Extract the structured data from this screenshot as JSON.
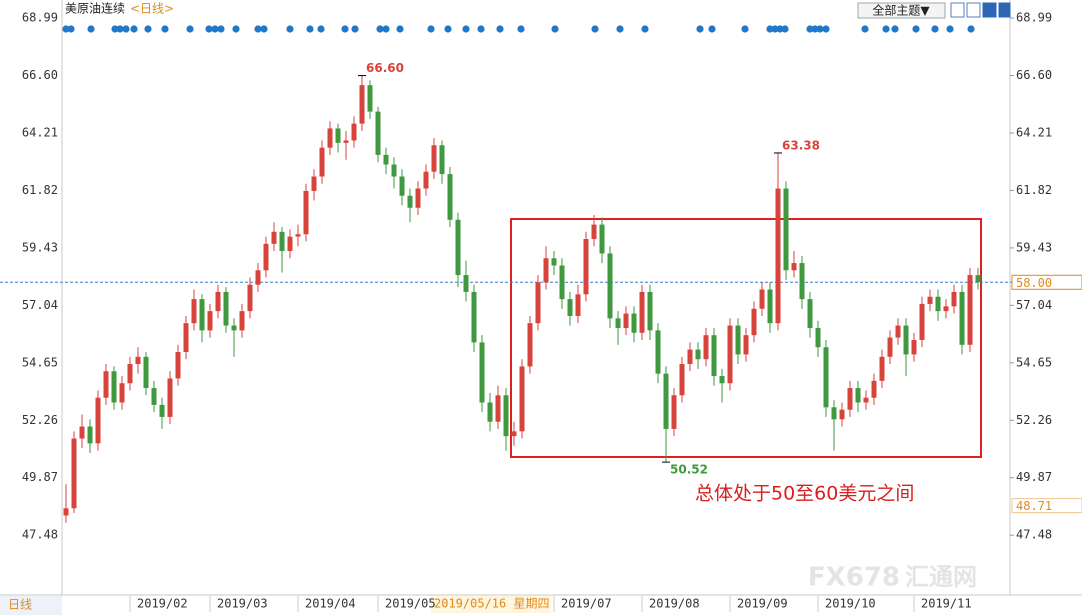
{
  "chart_data": {
    "type": "candlestick",
    "title": "美原油连续",
    "period": "<日线>",
    "theme_button": "全部主题▼",
    "period_selector": "日线",
    "watermark": [
      "FX678",
      "汇通网"
    ],
    "crosshair_label": "2019/05/16 星期四",
    "note": "总体处于50至60美元之间",
    "categories": [
      null,
      null,
      null,
      null,
      null,
      null,
      null,
      null,
      "2019/02",
      null,
      null,
      null,
      null,
      null,
      null,
      null,
      null,
      null,
      "2019/03",
      null,
      null,
      null,
      null,
      null,
      null,
      null,
      null,
      null,
      null,
      "2019/04",
      null,
      null,
      null,
      null,
      null,
      null,
      null,
      null,
      null,
      "2019/05",
      null,
      null,
      null,
      null,
      null,
      null,
      null,
      null,
      null,
      null,
      null,
      null,
      null,
      null,
      null,
      null,
      null,
      null,
      null,
      null,
      null,
      "2019/07",
      null,
      null,
      null,
      null,
      null,
      null,
      null,
      null,
      null,
      null,
      "2019/08",
      null,
      null,
      null,
      null,
      null,
      null,
      null,
      null,
      null,
      null,
      "2019/09",
      null,
      null,
      null,
      null,
      null,
      null,
      null,
      null,
      null,
      null,
      "2019/10",
      null,
      null,
      null,
      null,
      null,
      null,
      null,
      null,
      null,
      null,
      null,
      "2019/11",
      null,
      null,
      null,
      null,
      null,
      null,
      null,
      null
    ],
    "open": [
      48.3,
      48.6,
      51.5,
      52.0,
      51.3,
      53.2,
      54.3,
      53.0,
      53.8,
      54.6,
      54.9,
      53.6,
      52.9,
      52.4,
      54.0,
      55.1,
      56.3,
      57.3,
      56.0,
      56.8,
      57.6,
      56.2,
      56.0,
      56.8,
      57.9,
      58.5,
      59.6,
      60.1,
      59.3,
      59.9,
      60.0,
      61.8,
      62.4,
      63.6,
      64.4,
      63.8,
      63.9,
      64.6,
      66.2,
      65.1,
      63.3,
      62.9,
      62.4,
      61.6,
      61.1,
      61.9,
      62.6,
      63.7,
      62.5,
      60.6,
      58.3,
      57.6,
      55.5,
      53.0,
      52.2,
      53.3,
      51.6,
      51.8,
      54.5,
      56.3,
      58.0,
      59.0,
      58.7,
      57.3,
      56.6,
      57.5,
      59.8,
      60.4,
      59.2,
      56.5,
      56.1,
      56.7,
      55.9,
      57.6,
      56.0,
      54.2,
      51.9,
      53.3,
      54.6,
      55.2,
      54.8,
      55.8,
      54.1,
      53.8,
      56.2,
      55.0,
      55.8,
      56.9,
      57.7,
      56.3,
      61.9,
      58.5,
      58.8,
      57.3,
      56.1,
      55.3,
      52.8,
      52.3,
      52.7,
      53.6,
      53.0,
      53.2,
      53.9,
      54.9,
      55.7,
      56.2,
      55.0,
      55.6,
      57.1,
      57.4,
      56.8,
      57.0,
      57.6,
      55.4,
      58.3
    ],
    "high": [
      49.6,
      51.8,
      52.5,
      52.3,
      53.5,
      54.6,
      54.5,
      54.1,
      54.9,
      55.3,
      55.1,
      53.9,
      53.2,
      54.3,
      55.4,
      56.6,
      57.7,
      57.5,
      57.1,
      57.9,
      57.8,
      56.5,
      57.1,
      58.2,
      58.8,
      59.9,
      60.5,
      60.3,
      60.2,
      60.4,
      62.1,
      62.7,
      63.9,
      64.7,
      64.6,
      64.3,
      64.9,
      66.6,
      66.4,
      65.3,
      63.6,
      63.2,
      62.7,
      61.9,
      62.2,
      62.9,
      64.0,
      63.9,
      62.8,
      60.9,
      58.9,
      57.9,
      55.8,
      53.4,
      53.7,
      53.6,
      52.2,
      54.8,
      56.6,
      58.3,
      59.5,
      59.3,
      59.0,
      57.6,
      57.9,
      60.1,
      60.8,
      60.7,
      59.5,
      56.8,
      57.0,
      57.0,
      57.9,
      57.9,
      56.3,
      54.5,
      53.6,
      54.9,
      55.5,
      55.5,
      56.1,
      56.1,
      54.4,
      56.5,
      56.5,
      56.1,
      57.2,
      58.0,
      58.0,
      63.38,
      62.2,
      59.3,
      59.1,
      57.6,
      56.4,
      55.6,
      53.1,
      53.0,
      53.9,
      53.9,
      53.5,
      54.2,
      55.2,
      56.0,
      56.5,
      56.5,
      55.9,
      57.4,
      57.7,
      57.7,
      57.3,
      57.9,
      57.9,
      58.6,
      58.6
    ],
    "low": [
      48.0,
      48.4,
      51.1,
      50.9,
      51.0,
      52.9,
      52.7,
      52.7,
      53.5,
      54.2,
      53.3,
      52.6,
      51.9,
      52.1,
      53.7,
      54.8,
      56.0,
      55.5,
      55.7,
      56.5,
      55.9,
      54.9,
      55.7,
      56.5,
      57.6,
      58.2,
      59.3,
      58.4,
      59.0,
      59.5,
      59.7,
      61.4,
      62.1,
      63.3,
      63.4,
      63.1,
      63.6,
      64.3,
      64.8,
      63.0,
      62.5,
      61.9,
      61.2,
      60.5,
      60.8,
      61.6,
      62.3,
      62.1,
      60.3,
      57.8,
      57.2,
      55.1,
      52.6,
      51.8,
      51.9,
      51.0,
      51.2,
      51.5,
      54.2,
      56.0,
      57.7,
      58.3,
      56.9,
      56.2,
      56.3,
      57.2,
      59.5,
      58.8,
      56.1,
      55.4,
      55.8,
      55.5,
      55.6,
      55.6,
      53.8,
      50.52,
      51.6,
      53.0,
      54.3,
      54.4,
      54.5,
      53.7,
      53.0,
      53.5,
      54.6,
      54.7,
      55.5,
      56.6,
      55.9,
      56.0,
      58.1,
      58.2,
      56.9,
      55.7,
      54.9,
      52.4,
      51.0,
      52.0,
      52.4,
      52.6,
      52.7,
      52.9,
      53.6,
      54.6,
      55.4,
      54.1,
      54.7,
      55.3,
      56.8,
      56.4,
      56.5,
      56.7,
      55.0,
      55.1,
      57.7
    ],
    "close": [
      48.6,
      51.5,
      52.0,
      51.3,
      53.2,
      54.3,
      53.0,
      53.8,
      54.6,
      54.9,
      53.6,
      52.9,
      52.4,
      54.0,
      55.1,
      56.3,
      57.3,
      56.0,
      56.8,
      57.6,
      56.2,
      56.0,
      56.8,
      57.9,
      58.5,
      59.6,
      60.1,
      59.3,
      59.9,
      60.0,
      61.8,
      62.4,
      63.6,
      64.4,
      63.8,
      63.9,
      64.6,
      66.2,
      65.1,
      63.3,
      62.9,
      62.4,
      61.6,
      61.1,
      61.9,
      62.6,
      63.7,
      62.5,
      60.6,
      58.3,
      57.6,
      55.5,
      53.0,
      52.2,
      53.3,
      51.6,
      51.8,
      54.5,
      56.3,
      58.0,
      59.0,
      58.7,
      57.3,
      56.6,
      57.5,
      59.8,
      60.4,
      59.2,
      56.5,
      56.1,
      56.7,
      55.9,
      57.6,
      56.0,
      54.2,
      51.9,
      53.3,
      54.6,
      55.2,
      54.8,
      55.8,
      54.1,
      53.8,
      56.2,
      55.0,
      55.8,
      56.9,
      57.7,
      56.3,
      61.9,
      58.5,
      58.8,
      57.3,
      56.1,
      55.3,
      52.8,
      52.3,
      52.7,
      53.6,
      53.0,
      53.2,
      53.9,
      54.9,
      55.7,
      56.2,
      55.0,
      55.6,
      57.1,
      57.4,
      56.8,
      57.0,
      57.6,
      55.4,
      58.3,
      58.0
    ],
    "up_color": "#d8433c",
    "down_color": "#3f9a3f",
    "ylim": [
      45.2,
      69.41
    ],
    "yticks": [
      47.48,
      49.87,
      52.26,
      54.65,
      57.04,
      59.43,
      61.82,
      64.21,
      {
        "value": 66.6,
        "label": "66.60"
      },
      68.99
    ],
    "grid": false,
    "annotations": [
      {
        "value": 66.6,
        "label": "66.60"
      },
      63.38,
      50.52
    ],
    "last_price": {
      "value": 58,
      "label": "58.00"
    },
    "price_marker": 48.71
  }
}
